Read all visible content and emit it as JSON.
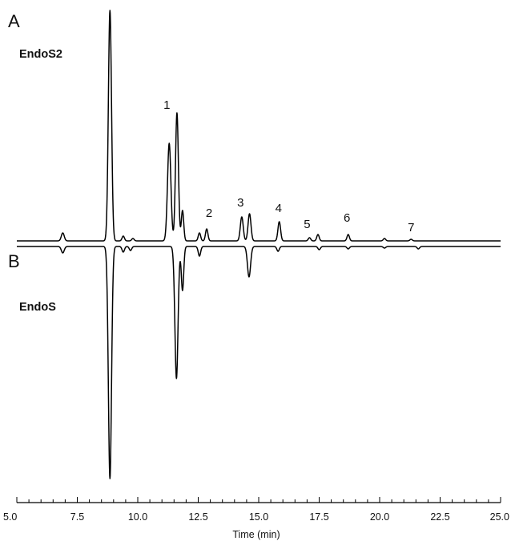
{
  "chart_data": {
    "type": "line",
    "title": "",
    "xlabel": "Time (min)",
    "ylabel": "",
    "xlim": [
      5.0,
      25.0
    ],
    "x_ticks": [
      "5.0",
      "7.5",
      "10.0",
      "12.5",
      "15.0",
      "17.5",
      "20.0",
      "22.5",
      "25.0"
    ],
    "minor_tick_step": 0.5,
    "grid": false,
    "legend": "none",
    "panels": [
      {
        "letter": "A",
        "name": "EndoS2",
        "direction": "up",
        "baseline_offset": 0,
        "peaks": [
          {
            "x": 6.9,
            "h": 10,
            "w": 0.06
          },
          {
            "x": 8.85,
            "h": 288,
            "w": 0.065
          },
          {
            "x": 9.4,
            "h": 6,
            "w": 0.05
          },
          {
            "x": 9.8,
            "h": 3,
            "w": 0.05
          },
          {
            "x": 11.3,
            "h": 122,
            "w": 0.07
          },
          {
            "x": 11.62,
            "h": 160,
            "w": 0.06
          },
          {
            "x": 11.85,
            "h": 38,
            "w": 0.05
          },
          {
            "x": 12.55,
            "h": 10,
            "w": 0.05
          },
          {
            "x": 12.85,
            "h": 15,
            "w": 0.05
          },
          {
            "x": 14.3,
            "h": 30,
            "w": 0.06
          },
          {
            "x": 14.62,
            "h": 34,
            "w": 0.06
          },
          {
            "x": 15.85,
            "h": 24,
            "w": 0.055
          },
          {
            "x": 17.1,
            "h": 4,
            "w": 0.05
          },
          {
            "x": 17.45,
            "h": 8,
            "w": 0.05
          },
          {
            "x": 18.7,
            "h": 8,
            "w": 0.05
          },
          {
            "x": 20.2,
            "h": 3,
            "w": 0.05
          },
          {
            "x": 21.3,
            "h": 2,
            "w": 0.05
          }
        ],
        "annotations": [
          {
            "label": "1",
            "x": 11.2,
            "y": 165
          },
          {
            "label": "2",
            "x": 12.95,
            "y": 30
          },
          {
            "label": "3",
            "x": 14.25,
            "y": 43
          },
          {
            "label": "4",
            "x": 15.82,
            "y": 36
          },
          {
            "label": "5",
            "x": 17.0,
            "y": 16
          },
          {
            "label": "6",
            "x": 18.65,
            "y": 24
          },
          {
            "label": "7",
            "x": 21.3,
            "y": 12
          }
        ]
      },
      {
        "letter": "B",
        "name": "EndoS",
        "direction": "down",
        "baseline_offset": 0,
        "peaks": [
          {
            "x": 6.9,
            "h": 8,
            "w": 0.06
          },
          {
            "x": 8.85,
            "h": 290,
            "w": 0.065
          },
          {
            "x": 9.4,
            "h": 7,
            "w": 0.05
          },
          {
            "x": 9.7,
            "h": 5,
            "w": 0.05
          },
          {
            "x": 11.6,
            "h": 165,
            "w": 0.065
          },
          {
            "x": 11.85,
            "h": 55,
            "w": 0.05
          },
          {
            "x": 12.55,
            "h": 12,
            "w": 0.05
          },
          {
            "x": 14.6,
            "h": 38,
            "w": 0.065
          },
          {
            "x": 15.8,
            "h": 6,
            "w": 0.05
          },
          {
            "x": 17.5,
            "h": 4,
            "w": 0.05
          },
          {
            "x": 18.7,
            "h": 3,
            "w": 0.05
          },
          {
            "x": 20.2,
            "h": 2,
            "w": 0.05
          },
          {
            "x": 21.6,
            "h": 3,
            "w": 0.05
          }
        ],
        "annotations": []
      }
    ]
  }
}
